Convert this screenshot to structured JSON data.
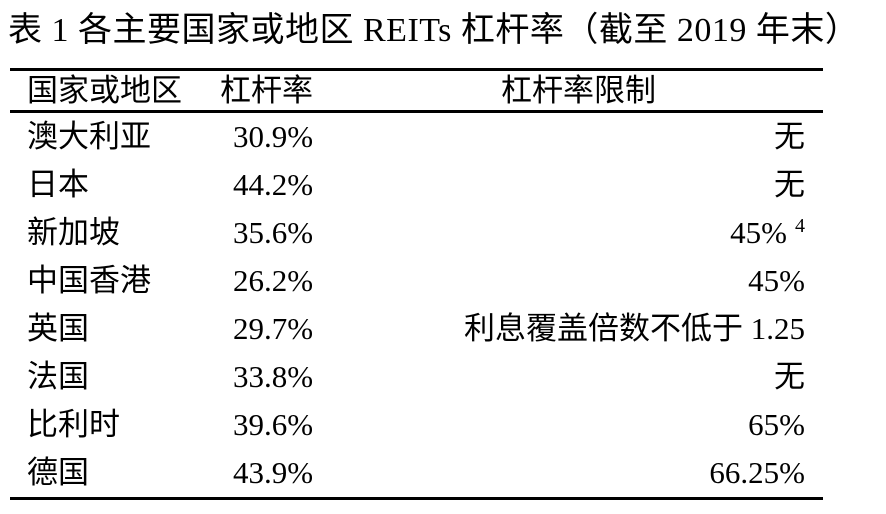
{
  "page": {
    "background_color": "#ffffff",
    "text_color": "#000000",
    "rule_color": "#000000"
  },
  "caption": "表 1 各主要国家或地区 REITs 杠杆率（截至 2019 年末）",
  "table": {
    "headers": [
      "国家或地区",
      "杠杆率",
      "杠杆率限制"
    ],
    "rows": [
      {
        "country": "澳大利亚",
        "leverage": "30.9%",
        "limit": "无"
      },
      {
        "country": "日本",
        "leverage": "44.2%",
        "limit": "无"
      },
      {
        "country": "新加坡",
        "leverage": "35.6%",
        "limit": "45%",
        "limit_superscript": "4"
      },
      {
        "country": "中国香港",
        "leverage": "26.2%",
        "limit": "45%"
      },
      {
        "country": "英国",
        "leverage": "29.7%",
        "limit": "利息覆盖倍数不低于 1.25"
      },
      {
        "country": "法国",
        "leverage": "33.8%",
        "limit": "无"
      },
      {
        "country": "比利时",
        "leverage": "39.6%",
        "limit": "65%"
      },
      {
        "country": "德国",
        "leverage": "43.9%",
        "limit": "66.25%"
      }
    ]
  }
}
